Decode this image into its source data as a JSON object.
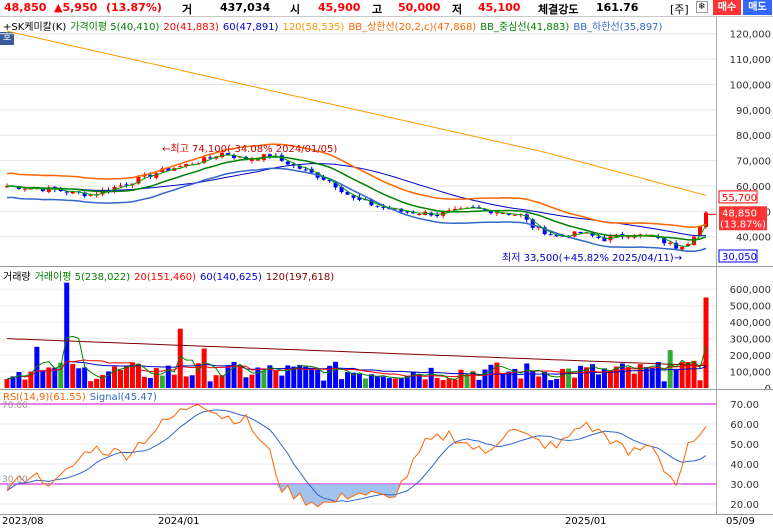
{
  "header": {
    "price": "48,850",
    "change": "▲5,950",
    "change_pct": "(13.87%)",
    "vol_label": "거",
    "vol_value": "437,034",
    "open_label": "시",
    "open_value": "45,900",
    "high_label": "고",
    "high_value": "50,000",
    "low_label": "저",
    "low_value": "45,100",
    "strength_label": "체결강도",
    "strength_value": "161.76",
    "tag": "[주]",
    "buy_label": "매수",
    "sell_label": "매도"
  },
  "price_panel": {
    "legend": [
      {
        "text": "+SK케미칼(K)",
        "color": "#000000"
      },
      {
        "text": "가격이평 5(40,410)",
        "color": "#008000"
      },
      {
        "text": "20(41,883)",
        "color": "#ff0000"
      },
      {
        "text": "60(47,891)",
        "color": "#0000cc"
      },
      {
        "text": "120(58,535)",
        "color": "#ff9900"
      },
      {
        "text": "BB_상한선(20,2,c)(47,868)",
        "color": "#ff6600"
      },
      {
        "text": "BB_중심선(41,883)",
        "color": "#008000"
      },
      {
        "text": "BB_하한선(35,897)",
        "color": "#3366cc"
      }
    ],
    "corner_label": "호",
    "high_note": "←최고 74,100(-34.08% 2024/01/05)",
    "low_note": "최저 33,500(+45.82% 2025/04/11)→",
    "axis_ticks": [
      "120,000",
      "110,000",
      "100,000",
      "90,000",
      "80,000",
      "70,000",
      "60,000",
      "50,000",
      "40,000"
    ],
    "label_high": "55,700",
    "label_current": "48,850",
    "label_pct": "(13.87%)",
    "label_low": "30,050"
  },
  "volume_panel": {
    "legend": [
      {
        "text": "거래량",
        "color": "#000000"
      },
      {
        "text": "거래이평 5(238,022)",
        "color": "#008000"
      },
      {
        "text": "20(151,460)",
        "color": "#ff0000"
      },
      {
        "text": "60(140,625)",
        "color": "#0000cc"
      },
      {
        "text": "120(197,618)",
        "color": "#800000"
      }
    ],
    "axis_ticks": [
      "600,000",
      "500,000",
      "400,000",
      "300,000",
      "200,000",
      "100,000",
      "0"
    ]
  },
  "rsi_panel": {
    "legend": [
      {
        "text": "RSI(14,9)(61.55)",
        "color": "#ff6600"
      },
      {
        "text": "Signal(45.47)",
        "color": "#3366cc"
      }
    ],
    "axis_ticks": [
      "70.00",
      "60.00",
      "50.00",
      "40.00",
      "30.00",
      "20.00"
    ],
    "inner_label_top": "70.00",
    "inner_label_bottom": "30.00"
  },
  "x_axis": {
    "labels": [
      "2023/08",
      "2024/01",
      "2025/01",
      "05/09"
    ]
  },
  "chart_data": {
    "type": "line",
    "price_axis_ylim": [
      30050,
      125000
    ],
    "annotations": {
      "high": 74100,
      "low": 33500
    },
    "current_price": 48850,
    "volume_axis_ylim": [
      0,
      650000
    ],
    "rsi": {
      "current": 61.55,
      "signal": 45.47,
      "levels": [
        30,
        70
      ]
    },
    "ma": {
      "5": 40410,
      "20": 41883,
      "60": 47891,
      "120": 58535
    },
    "bollinger": {
      "upper": 47868,
      "middle": 41883,
      "lower": 35897
    }
  },
  "colors": {
    "up": "#ff0000",
    "down": "#0000ff",
    "buy_bg": "#ff3333",
    "sell_bg": "#3366ff"
  }
}
